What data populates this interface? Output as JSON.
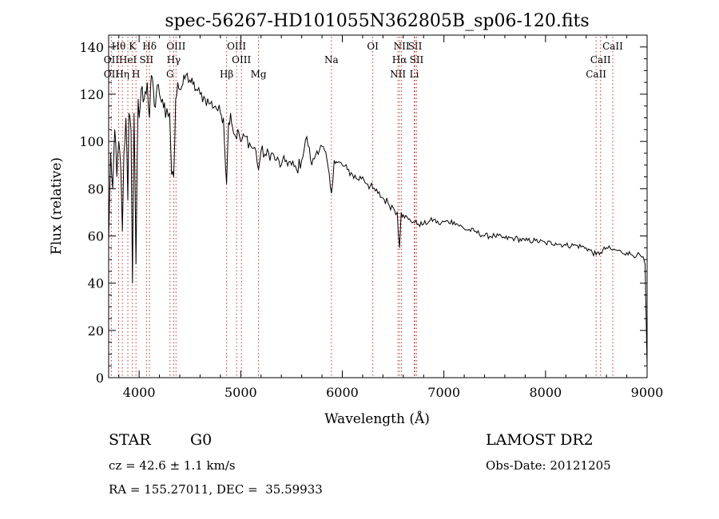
{
  "chart_data": {
    "type": "line",
    "title": "spec-56267-HD101055N362805B_sp06-120.fits",
    "xlabel": "Wavelength (Å)",
    "ylabel": "Flux (relative)",
    "xlim": [
      3700,
      9000
    ],
    "ylim": [
      0,
      145
    ],
    "x_ticks": [
      4000,
      5000,
      6000,
      7000,
      8000,
      9000
    ],
    "y_ticks": [
      0,
      20,
      40,
      60,
      80,
      100,
      120,
      140
    ],
    "grid": false,
    "series": [
      {
        "x": [
          3700,
          3720,
          3740,
          3760,
          3780,
          3800,
          3820,
          3835,
          3850,
          3870,
          3889,
          3900,
          3920,
          3934,
          3950,
          3969,
          3990,
          4000,
          4020,
          4050,
          4080,
          4102,
          4120,
          4150,
          4180,
          4200,
          4230,
          4260,
          4300,
          4320,
          4340,
          4360,
          4380,
          4400,
          4430,
          4460,
          4500,
          4530,
          4560,
          4600,
          4650,
          4700,
          4750,
          4800,
          4830,
          4861,
          4880,
          4900,
          4920,
          4950,
          4980,
          5000,
          5050,
          5100,
          5150,
          5175,
          5200,
          5250,
          5300,
          5350,
          5400,
          5450,
          5500,
          5550,
          5600,
          5650,
          5700,
          5750,
          5800,
          5850,
          5893,
          5920,
          5950,
          6000,
          6050,
          6100,
          6150,
          6200,
          6250,
          6300,
          6350,
          6400,
          6450,
          6500,
          6540,
          6563,
          6580,
          6600,
          6650,
          6700,
          6750,
          6800,
          6850,
          6900,
          6950,
          7000,
          7100,
          7200,
          7300,
          7400,
          7500,
          7600,
          7700,
          7800,
          7900,
          8000,
          8100,
          8200,
          8300,
          8400,
          8498,
          8542,
          8600,
          8662,
          8700,
          8750,
          8800,
          8850,
          8900,
          8950,
          8980,
          9000
        ],
        "y": [
          58,
          95,
          80,
          105,
          85,
          100,
          88,
          62,
          95,
          110,
          75,
          112,
          105,
          40,
          112,
          48,
          118,
          110,
          122,
          118,
          125,
          110,
          128,
          115,
          124,
          120,
          118,
          110,
          112,
          86,
          85,
          118,
          125,
          122,
          124,
          128,
          126,
          124,
          122,
          120,
          118,
          116,
          115,
          112,
          110,
          82,
          108,
          112,
          106,
          102,
          104,
          100,
          102,
          98,
          96,
          88,
          96,
          94,
          95,
          92,
          90,
          92,
          90,
          88,
          92,
          102,
          90,
          96,
          98,
          92,
          78,
          92,
          91,
          90,
          88,
          86,
          84,
          85,
          82,
          80,
          78,
          76,
          74,
          72,
          70,
          55,
          70,
          69,
          67,
          66,
          65,
          65,
          66,
          67,
          65,
          66,
          66,
          63,
          62,
          60,
          60,
          59,
          59,
          58,
          58,
          57,
          57,
          56,
          56,
          55,
          52,
          53,
          55,
          54,
          54,
          53,
          53,
          52,
          52,
          51,
          48,
          5
        ]
      }
    ],
    "line_markers": [
      {
        "label": "Hθ",
        "x": 3798,
        "row": 0,
        "dx": 0
      },
      {
        "label": "K",
        "x": 3934,
        "row": 0,
        "dx": 0
      },
      {
        "label": "Hδ",
        "x": 4102,
        "row": 0,
        "dx": 0
      },
      {
        "label": "OIII",
        "x": 4363,
        "row": 0,
        "dx": 0
      },
      {
        "label": "OIII",
        "x": 4959,
        "row": 0,
        "dx": 0
      },
      {
        "label": "OI",
        "x": 6300,
        "row": 0,
        "dx": 0
      },
      {
        "label": "NII",
        "x": 6583,
        "row": 0,
        "dx": 0
      },
      {
        "label": "SII",
        "x": 6716,
        "row": 0,
        "dx": 0
      },
      {
        "label": "CaII",
        "x": 8662,
        "row": 0,
        "dx": 0
      },
      {
        "label": "OII",
        "x": 3727,
        "row": 1,
        "dx": 0
      },
      {
        "label": "HeI",
        "x": 3889,
        "row": 1,
        "dx": 0
      },
      {
        "label": "SII",
        "x": 4072,
        "row": 1,
        "dx": 0
      },
      {
        "label": "Hγ",
        "x": 4340,
        "row": 1,
        "dx": 0
      },
      {
        "label": "OIII",
        "x": 5007,
        "row": 1,
        "dx": 0
      },
      {
        "label": "Na",
        "x": 5893,
        "row": 1,
        "dx": 0
      },
      {
        "label": "Hα",
        "x": 6563,
        "row": 1,
        "dx": 0
      },
      {
        "label": "SII",
        "x": 6731,
        "row": 1,
        "dx": 0
      },
      {
        "label": "CaII",
        "x": 8542,
        "row": 1,
        "dx": 0
      },
      {
        "label": "OII",
        "x": 3727,
        "row": 2,
        "dx": 0
      },
      {
        "label": "Hη",
        "x": 3835,
        "row": 2,
        "dx": 0
      },
      {
        "label": "H",
        "x": 3969,
        "row": 2,
        "dx": 0
      },
      {
        "label": "G",
        "x": 4304,
        "row": 2,
        "dx": 0
      },
      {
        "label": "Hβ",
        "x": 4861,
        "row": 2,
        "dx": 0
      },
      {
        "label": "Mg",
        "x": 5175,
        "row": 2,
        "dx": 0
      },
      {
        "label": "NII",
        "x": 6548,
        "row": 2,
        "dx": 0
      },
      {
        "label": "Li",
        "x": 6708,
        "row": 2,
        "dx": 0
      },
      {
        "label": "CaII",
        "x": 8498,
        "row": 2,
        "dx": 0
      }
    ]
  },
  "info": {
    "object_class": "STAR",
    "subclass": "G0",
    "survey": "LAMOST DR2",
    "redshift": "cz = 42.6 ± 1.1 km/s",
    "obs_date": "Obs-Date: 20121205",
    "coords": "RA = 155.27011, DEC =  35.59933"
  }
}
